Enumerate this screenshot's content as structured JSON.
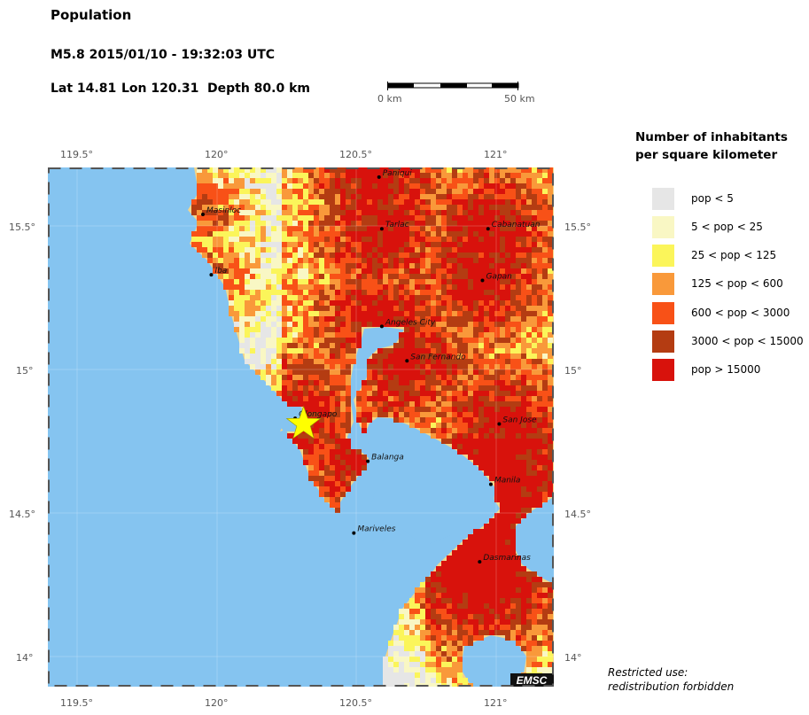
{
  "header": {
    "title": "Population",
    "event": "M5.8  2015/01/10 - 19:32:03 UTC",
    "lat": "Lat 14.81",
    "lon": "Lon 120.31",
    "depth": "Depth  80.0 km"
  },
  "scale_bar": {
    "start_label": "0 km",
    "end_label": "50 km"
  },
  "map": {
    "lon_ticks": [
      "119.5°",
      "120°",
      "120.5°",
      "121°"
    ],
    "lat_ticks": [
      "15.5°",
      "15°",
      "14.5°",
      "14°"
    ],
    "epicenter": {
      "lat": 14.81,
      "lon": 120.31
    },
    "cities": [
      {
        "name": "Paniqui",
        "lon": 120.58,
        "lat": 15.67
      },
      {
        "name": "Masinloc",
        "lon": 119.95,
        "lat": 15.54
      },
      {
        "name": "Tarlac",
        "lon": 120.59,
        "lat": 15.49
      },
      {
        "name": "Cabanatuan",
        "lon": 120.97,
        "lat": 15.49
      },
      {
        "name": "Iba",
        "lon": 119.98,
        "lat": 15.33
      },
      {
        "name": "Gapan",
        "lon": 120.95,
        "lat": 15.31
      },
      {
        "name": "Angeles City",
        "lon": 120.59,
        "lat": 15.15
      },
      {
        "name": "San Fernando",
        "lon": 120.68,
        "lat": 15.03
      },
      {
        "name": "Olongapo",
        "lon": 120.28,
        "lat": 14.83
      },
      {
        "name": "San Jose",
        "lon": 121.01,
        "lat": 14.81
      },
      {
        "name": "Balanga",
        "lon": 120.54,
        "lat": 14.68
      },
      {
        "name": "Manila",
        "lon": 120.98,
        "lat": 14.6
      },
      {
        "name": "Mariveles",
        "lon": 120.49,
        "lat": 14.43
      },
      {
        "name": "Dasmarinas",
        "lon": 120.94,
        "lat": 14.33
      }
    ],
    "logo_text": "EMSC",
    "colors": {
      "sea": "#85c4f0",
      "border": "#555555"
    }
  },
  "legend": {
    "title_line1": "Number of inhabitants",
    "title_line2": "per square kilometer",
    "items": [
      {
        "label": "pop < 5",
        "color": "#e6e6e6"
      },
      {
        "label": "5 < pop < 25",
        "color": "#f9f7c4"
      },
      {
        "label": "25 < pop < 125",
        "color": "#fbf55a"
      },
      {
        "label": "125 < pop < 600",
        "color": "#f9993a"
      },
      {
        "label": "600 < pop < 3000",
        "color": "#f85117"
      },
      {
        "label": "3000 < pop < 15000",
        "color": "#b43c12"
      },
      {
        "label": "pop > 15000",
        "color": "#d8120c"
      }
    ]
  },
  "note": {
    "line1": "Restricted use:",
    "line2": "redistribution forbidden"
  }
}
